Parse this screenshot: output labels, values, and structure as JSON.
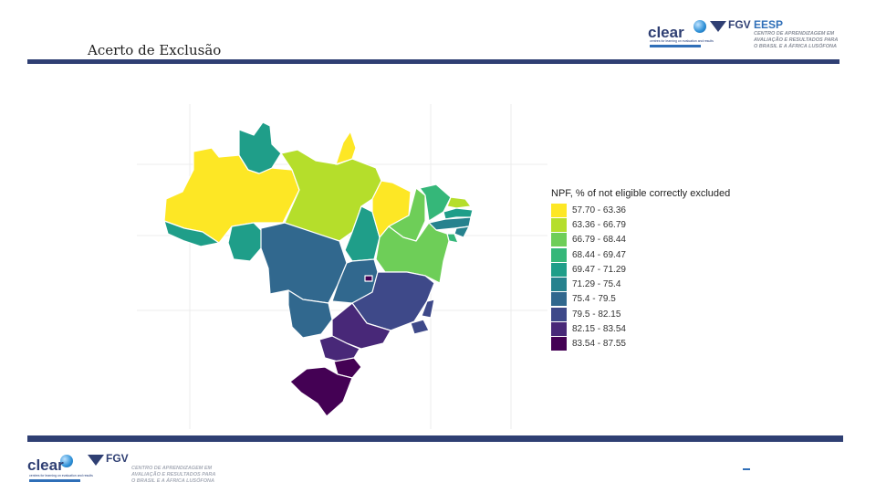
{
  "header": {
    "title": "Acerto de Exclusão"
  },
  "logos": {
    "clear_word": "clear",
    "clear_subtitle": "centres for learning on evaluation and results",
    "fgv_word": "FGV",
    "eesp_word": "EESP",
    "fgv_subtitle_lines": [
      "CENTRO DE APRENDIZAGEM EM",
      "AVALIAÇÃO E RESULTADOS PARA",
      "O BRASIL E A ÁFRICA LUSÓFONA"
    ]
  },
  "map": {
    "legend_title": "NPF, % of not eligible correctly excluded",
    "legend": [
      {
        "label": "57.70 - 63.36",
        "color": "#fde725"
      },
      {
        "label": "63.36 - 66.79",
        "color": "#b5de2b"
      },
      {
        "label": "66.79 - 68.44",
        "color": "#6ece58"
      },
      {
        "label": "68.44 - 69.47",
        "color": "#35b779"
      },
      {
        "label": "69.47 - 71.29",
        "color": "#1f9e89"
      },
      {
        "label": "71.29 - 75.4",
        "color": "#26828e"
      },
      {
        "label": "75.4 - 79.5",
        "color": "#31688e"
      },
      {
        "label": "79.5 - 82.15",
        "color": "#3e4989"
      },
      {
        "label": "82.15 - 83.54",
        "color": "#482878"
      },
      {
        "label": "83.54 - 87.55",
        "color": "#440154"
      }
    ]
  }
}
